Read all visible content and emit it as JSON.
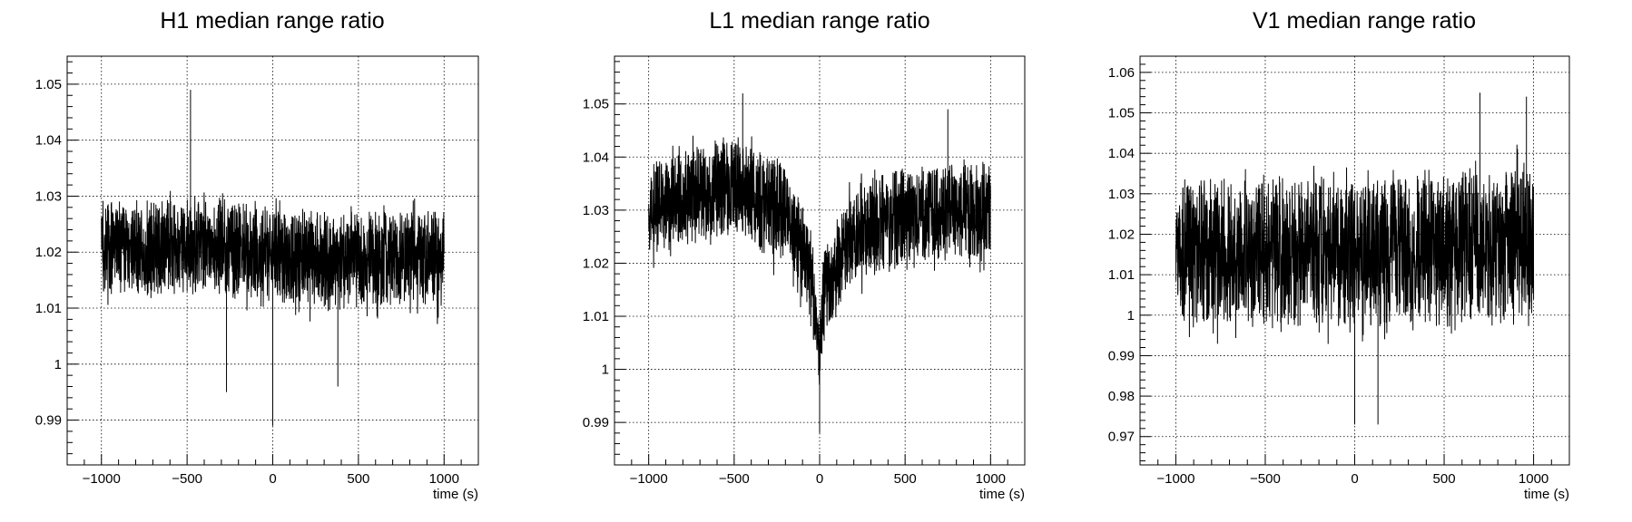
{
  "chart_data": [
    {
      "type": "line",
      "title": "H1 median range ratio",
      "xlabel": "time (s)",
      "ylabel": "",
      "xlim": [
        -1200,
        1200
      ],
      "ylim": [
        0.982,
        1.055
      ],
      "x_ticks": [
        -1000,
        -500,
        0,
        500,
        1000
      ],
      "y_ticks": [
        0.99,
        1,
        1.01,
        1.02,
        1.03,
        1.04,
        1.05
      ],
      "grid": true,
      "series": [
        {
          "x_range": [
            -1000,
            1000
          ],
          "points": 2000,
          "envelope": {
            "x": [
              -1000,
              -500,
              -20,
              0,
              20,
              500,
              1000
            ],
            "center": [
              1.021,
              1.021,
              1.02,
              1.02,
              1.019,
              1.019,
              1.019
            ],
            "half_width": [
              0.0085,
              0.0085,
              0.0085,
              0.0085,
              0.0085,
              0.0085,
              0.0085
            ]
          },
          "extremes": [
            {
              "x": -480,
              "y": 1.049
            },
            {
              "x": 0,
              "y": 0.989
            },
            {
              "x": -270,
              "y": 0.995
            },
            {
              "x": 380,
              "y": 0.996
            }
          ]
        }
      ]
    },
    {
      "type": "line",
      "title": "L1 median range ratio",
      "xlabel": "time (s)",
      "ylabel": "",
      "xlim": [
        -1200,
        1200
      ],
      "ylim": [
        0.982,
        1.059
      ],
      "x_ticks": [
        -1000,
        -500,
        0,
        500,
        1000
      ],
      "y_ticks": [
        0.99,
        1,
        1.01,
        1.02,
        1.03,
        1.04,
        1.05
      ],
      "grid": true,
      "series": [
        {
          "x_range": [
            -1000,
            1000
          ],
          "points": 2000,
          "envelope": {
            "x": [
              -1000,
              -500,
              -200,
              -50,
              0,
              20,
              200,
              500,
              1000
            ],
            "center": [
              1.03,
              1.035,
              1.029,
              1.018,
              1.002,
              1.014,
              1.026,
              1.029,
              1.03
            ],
            "half_width": [
              0.009,
              0.009,
              0.009,
              0.009,
              0.006,
              0.008,
              0.009,
              0.009,
              0.009
            ]
          },
          "extremes": [
            {
              "x": -450,
              "y": 1.052
            },
            {
              "x": 0,
              "y": 0.988
            },
            {
              "x": 750,
              "y": 1.049
            }
          ]
        }
      ]
    },
    {
      "type": "line",
      "title": "V1 median range ratio",
      "xlabel": "time (s)",
      "ylabel": "",
      "xlim": [
        -1200,
        1200
      ],
      "ylim": [
        0.963,
        1.064
      ],
      "x_ticks": [
        -1000,
        -500,
        0,
        500,
        1000
      ],
      "y_ticks": [
        0.97,
        0.98,
        0.99,
        1,
        1.01,
        1.02,
        1.03,
        1.04,
        1.05,
        1.06
      ],
      "grid": true,
      "series": [
        {
          "x_range": [
            -1000,
            1000
          ],
          "points": 2000,
          "envelope": {
            "x": [
              -1000,
              0,
              1000
            ],
            "center": [
              1.016,
              1.015,
              1.018
            ],
            "half_width": [
              0.018,
              0.018,
              0.018
            ]
          },
          "extremes": [
            {
              "x": 0,
              "y": 0.973
            },
            {
              "x": 130,
              "y": 0.973
            },
            {
              "x": 700,
              "y": 1.055
            },
            {
              "x": 960,
              "y": 1.054
            }
          ]
        }
      ]
    }
  ]
}
